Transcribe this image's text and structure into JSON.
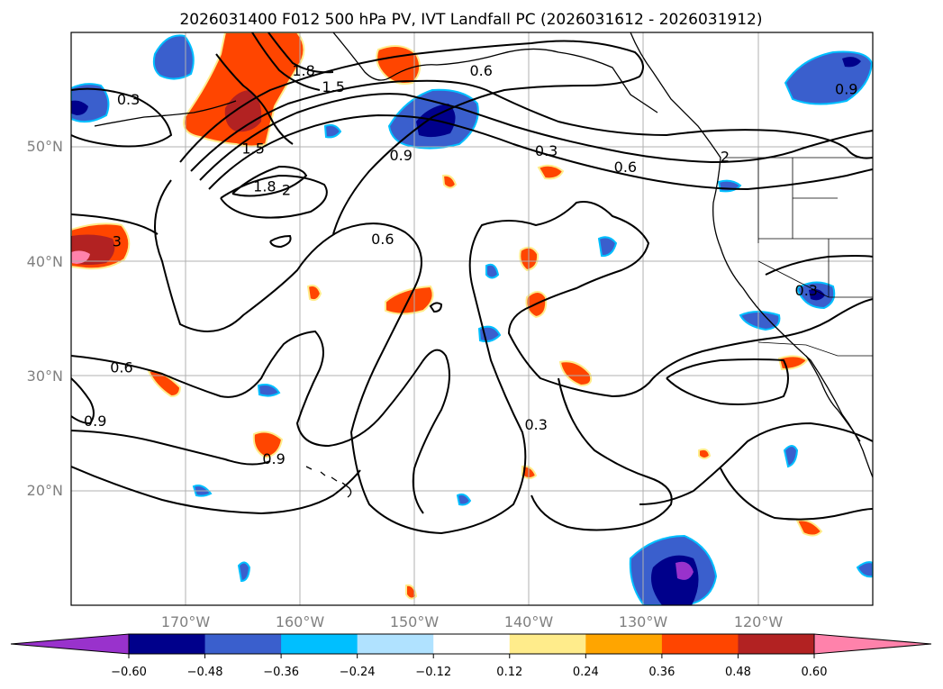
{
  "title": "2026031400 F012 500 hPa PV, IVT Landfall PC (2026031612 - 2026031912)",
  "map": {
    "lon_range": [
      -180,
      -110
    ],
    "lat_range": [
      10,
      60
    ],
    "lat_ticks": [
      {
        "lat": 50,
        "label": "50°N"
      },
      {
        "lat": 40,
        "label": "40°N"
      },
      {
        "lat": 30,
        "label": "30°N"
      },
      {
        "lat": 20,
        "label": "20°N"
      }
    ],
    "lon_ticks": [
      {
        "lon": -170,
        "label": "170°W"
      },
      {
        "lon": -160,
        "label": "160°W"
      },
      {
        "lon": -150,
        "label": "150°W"
      },
      {
        "lon": -140,
        "label": "140°W"
      },
      {
        "lon": -130,
        "label": "130°W"
      },
      {
        "lon": -120,
        "label": "120°W"
      }
    ]
  },
  "colorbar": {
    "colors": [
      "#9932CC",
      "#00008B",
      "#3A5FCD",
      "#00BFFF",
      "#B0E2FF",
      "#FFFFFF",
      "#FFEC8B",
      "#FFA500",
      "#FF4500",
      "#B22222",
      "#FF82AB"
    ],
    "tick_values": [
      -0.6,
      -0.48,
      -0.36,
      -0.24,
      -0.12,
      0.12,
      0.24,
      0.36,
      0.48,
      0.6
    ],
    "tick_labels": [
      "−0.60",
      "−0.48",
      "−0.36",
      "−0.24",
      "−0.12",
      "0.12",
      "0.24",
      "0.36",
      "0.48",
      "0.60"
    ]
  },
  "chart_data": {
    "type": "filled contour map",
    "contour_labels": [
      {
        "text": "0.3",
        "lon": -175,
        "lat": 54.2
      },
      {
        "text": "1.8",
        "lon": -159.7,
        "lat": 56.7
      },
      {
        "text": "1.5",
        "lon": -157.1,
        "lat": 55.3
      },
      {
        "text": "0.6",
        "lon": -144.2,
        "lat": 56.7
      },
      {
        "text": "1.5",
        "lon": -164.1,
        "lat": 49.9
      },
      {
        "text": "0.9",
        "lon": -151.2,
        "lat": 49.3
      },
      {
        "text": "1.8",
        "lon": -163.1,
        "lat": 46.6
      },
      {
        "text": "2",
        "lon": -161.2,
        "lat": 46.3
      },
      {
        "text": "0.3",
        "lon": -138.5,
        "lat": 49.7
      },
      {
        "text": "0.6",
        "lon": -131.6,
        "lat": 48.3
      },
      {
        "text": "2",
        "lon": -122.9,
        "lat": 49.2
      },
      {
        "text": "0.9",
        "lon": -112.3,
        "lat": 55.1
      },
      {
        "text": "0.6",
        "lon": -152.8,
        "lat": 42.0
      },
      {
        "text": "3",
        "lon": -176,
        "lat": 41.8
      },
      {
        "text": "0.3",
        "lon": -115.8,
        "lat": 37.5
      },
      {
        "text": "0.6",
        "lon": -175.6,
        "lat": 30.8
      },
      {
        "text": "0.9",
        "lon": -177.9,
        "lat": 26.1
      },
      {
        "text": "0.9",
        "lon": -162.3,
        "lat": 22.8
      },
      {
        "text": "0.3",
        "lon": -139.4,
        "lat": 25.8
      }
    ]
  }
}
